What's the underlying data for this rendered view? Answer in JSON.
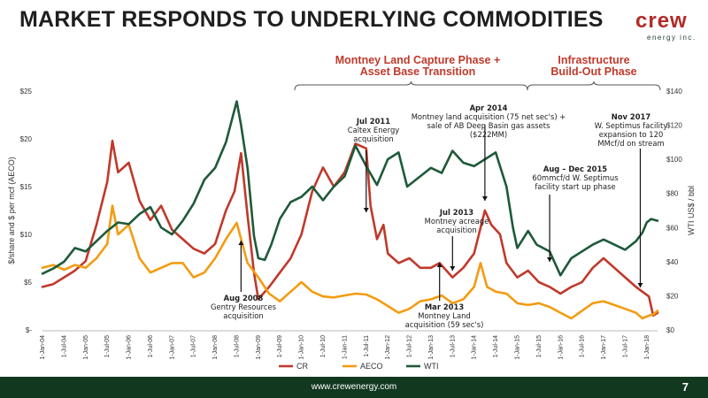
{
  "slide": {
    "title": "MARKET RESPONDS TO UNDERLYING COMMODITIES",
    "logo_word": "crew",
    "logo_sub": "energy inc.",
    "footer_url": "www.crewenergy.com",
    "page_number": "7"
  },
  "phases": [
    {
      "line1": "Montney Land Capture Phase +",
      "line2": "Asset Base Transition"
    },
    {
      "line1": "Infrastructure",
      "line2": "Build-Out Phase"
    }
  ],
  "annotations": [
    {
      "title": "Aug 2008",
      "text1": "Gentry Resources",
      "text2": "acquisition",
      "text3": ""
    },
    {
      "title": "Jul 2011",
      "text1": "Caltex Energy",
      "text2": "acquisition",
      "text3": ""
    },
    {
      "title": "Apr 2014",
      "text1": "Montney land acquisition (75 net sec's) +",
      "text2": "sale of AB Deep Basin gas assets ($222MM)",
      "text3": ""
    },
    {
      "title": "Jul 2013",
      "text1": "Montney acreage",
      "text2": "acquisition",
      "text3": ""
    },
    {
      "title": "Mar 2013",
      "text1": "Montney Land",
      "text2": "acquisition (59 sec's)",
      "text3": ""
    },
    {
      "title": "Aug – Dec 2015",
      "text1": "60mmcf/d W. Septimus",
      "text2": "facility start up phase",
      "text3": ""
    },
    {
      "title": "Nov 2017",
      "text1": "W. Septimus facility",
      "text2": "expansion to 120",
      "text3": "MMcf/d on stream"
    }
  ],
  "colors": {
    "CR": "#c0392b",
    "AECO": "#f39c12",
    "WTI": "#1e5a3a",
    "accent": "#c0392b",
    "footer": "#123820"
  },
  "chart_data": {
    "type": "line",
    "ylabel": "$/share and $ per mcf (AECO)",
    "ylabel_right": "WTI US$ / bbl",
    "ylim": [
      0,
      25
    ],
    "ylim_right": [
      0,
      140
    ],
    "y_ticks": [
      "$-",
      "$5",
      "$10",
      "$15",
      "$20",
      "$25"
    ],
    "y_ticks_right": [
      "$0",
      "$20",
      "$40",
      "$60",
      "$80",
      "$100",
      "$120",
      "$140"
    ],
    "x_ticks": [
      "1-Jan-04",
      "1-Jul-04",
      "1-Jan-05",
      "1-Jul-05",
      "1-Jan-06",
      "1-Jul-06",
      "1-Jan-07",
      "1-Jul-07",
      "1-Jan-08",
      "1-Jul-08",
      "1-Jan-09",
      "1-Jul-09",
      "1-Jan-10",
      "1-Jul-10",
      "1-Jan-11",
      "1-Jul-11",
      "1-Jan-12",
      "1-Jul-12",
      "1-Jan-13",
      "1-Jul-13",
      "1-Jan-14",
      "1-Jul-14",
      "1-Jan-15",
      "1-Jul-15",
      "1-Jan-16",
      "1-Jul-16",
      "1-Jan-17",
      "1-Jul-17",
      "1-Jan-18"
    ],
    "x_range": [
      2004.0,
      2018.25
    ],
    "legend": "bottom",
    "series": [
      {
        "name": "CR",
        "axis": "left",
        "points": [
          [
            2004.0,
            4.5
          ],
          [
            2004.25,
            4.8
          ],
          [
            2004.5,
            5.5
          ],
          [
            2004.75,
            6.2
          ],
          [
            2005.0,
            7.2
          ],
          [
            2005.25,
            11.0
          ],
          [
            2005.5,
            15.5
          ],
          [
            2005.62,
            19.8
          ],
          [
            2005.75,
            16.5
          ],
          [
            2006.0,
            17.5
          ],
          [
            2006.25,
            13.5
          ],
          [
            2006.5,
            11.5
          ],
          [
            2006.75,
            13.0
          ],
          [
            2007.0,
            10.5
          ],
          [
            2007.25,
            9.5
          ],
          [
            2007.5,
            8.5
          ],
          [
            2007.75,
            8.0
          ],
          [
            2008.0,
            9.0
          ],
          [
            2008.25,
            12.5
          ],
          [
            2008.45,
            14.5
          ],
          [
            2008.6,
            18.5
          ],
          [
            2008.75,
            12.0
          ],
          [
            2008.9,
            6.0
          ],
          [
            2009.0,
            3.2
          ],
          [
            2009.25,
            4.5
          ],
          [
            2009.5,
            6.0
          ],
          [
            2009.75,
            7.5
          ],
          [
            2010.0,
            10.0
          ],
          [
            2010.25,
            14.5
          ],
          [
            2010.5,
            17.0
          ],
          [
            2010.75,
            15.0
          ],
          [
            2011.0,
            16.5
          ],
          [
            2011.25,
            19.5
          ],
          [
            2011.5,
            19.0
          ],
          [
            2011.6,
            13.0
          ],
          [
            2011.75,
            9.5
          ],
          [
            2011.9,
            11.0
          ],
          [
            2012.0,
            8.0
          ],
          [
            2012.25,
            7.0
          ],
          [
            2012.5,
            7.5
          ],
          [
            2012.75,
            6.5
          ],
          [
            2013.0,
            6.5
          ],
          [
            2013.2,
            7.0
          ],
          [
            2013.5,
            5.5
          ],
          [
            2013.75,
            6.5
          ],
          [
            2014.0,
            8.0
          ],
          [
            2014.25,
            12.5
          ],
          [
            2014.4,
            11.0
          ],
          [
            2014.6,
            10.0
          ],
          [
            2014.75,
            7.0
          ],
          [
            2015.0,
            5.5
          ],
          [
            2015.25,
            6.2
          ],
          [
            2015.5,
            5.0
          ],
          [
            2015.75,
            4.5
          ],
          [
            2016.0,
            3.8
          ],
          [
            2016.25,
            4.5
          ],
          [
            2016.5,
            5.0
          ],
          [
            2016.75,
            6.5
          ],
          [
            2017.0,
            7.5
          ],
          [
            2017.25,
            6.5
          ],
          [
            2017.5,
            5.5
          ],
          [
            2017.75,
            4.5
          ],
          [
            2017.9,
            4.0
          ],
          [
            2018.05,
            3.5
          ],
          [
            2018.15,
            1.5
          ],
          [
            2018.25,
            1.8
          ]
        ]
      },
      {
        "name": "AECO",
        "axis": "left",
        "points": [
          [
            2004.0,
            6.5
          ],
          [
            2004.25,
            6.8
          ],
          [
            2004.5,
            6.3
          ],
          [
            2004.75,
            6.8
          ],
          [
            2005.0,
            6.5
          ],
          [
            2005.25,
            7.5
          ],
          [
            2005.5,
            9.0
          ],
          [
            2005.62,
            13.0
          ],
          [
            2005.75,
            10.0
          ],
          [
            2006.0,
            11.0
          ],
          [
            2006.25,
            7.5
          ],
          [
            2006.5,
            6.0
          ],
          [
            2006.75,
            6.5
          ],
          [
            2007.0,
            7.0
          ],
          [
            2007.25,
            7.0
          ],
          [
            2007.5,
            5.5
          ],
          [
            2007.75,
            6.0
          ],
          [
            2008.0,
            7.5
          ],
          [
            2008.25,
            9.5
          ],
          [
            2008.5,
            11.2
          ],
          [
            2008.75,
            7.0
          ],
          [
            2009.0,
            5.5
          ],
          [
            2009.25,
            3.8
          ],
          [
            2009.5,
            3.0
          ],
          [
            2009.75,
            4.0
          ],
          [
            2010.0,
            5.0
          ],
          [
            2010.25,
            4.0
          ],
          [
            2010.5,
            3.5
          ],
          [
            2010.75,
            3.4
          ],
          [
            2011.0,
            3.6
          ],
          [
            2011.25,
            3.8
          ],
          [
            2011.5,
            3.7
          ],
          [
            2011.75,
            3.2
          ],
          [
            2012.0,
            2.5
          ],
          [
            2012.25,
            1.8
          ],
          [
            2012.5,
            2.2
          ],
          [
            2012.75,
            3.0
          ],
          [
            2013.0,
            3.2
          ],
          [
            2013.25,
            3.6
          ],
          [
            2013.5,
            2.8
          ],
          [
            2013.75,
            3.2
          ],
          [
            2014.0,
            4.5
          ],
          [
            2014.15,
            7.0
          ],
          [
            2014.3,
            4.5
          ],
          [
            2014.5,
            4.0
          ],
          [
            2014.75,
            3.8
          ],
          [
            2015.0,
            2.8
          ],
          [
            2015.25,
            2.6
          ],
          [
            2015.5,
            2.8
          ],
          [
            2015.75,
            2.4
          ],
          [
            2016.0,
            1.8
          ],
          [
            2016.25,
            1.2
          ],
          [
            2016.5,
            2.0
          ],
          [
            2016.75,
            2.8
          ],
          [
            2017.0,
            3.0
          ],
          [
            2017.25,
            2.6
          ],
          [
            2017.5,
            2.2
          ],
          [
            2017.75,
            1.8
          ],
          [
            2017.9,
            1.2
          ],
          [
            2018.05,
            1.5
          ],
          [
            2018.15,
            1.6
          ],
          [
            2018.25,
            2.0
          ]
        ]
      },
      {
        "name": "WTI",
        "axis": "right",
        "points": [
          [
            2004.0,
            33
          ],
          [
            2004.25,
            36
          ],
          [
            2004.5,
            40
          ],
          [
            2004.75,
            48
          ],
          [
            2005.0,
            46
          ],
          [
            2005.25,
            52
          ],
          [
            2005.5,
            58
          ],
          [
            2005.75,
            63
          ],
          [
            2006.0,
            62
          ],
          [
            2006.25,
            68
          ],
          [
            2006.5,
            72
          ],
          [
            2006.75,
            60
          ],
          [
            2007.0,
            56
          ],
          [
            2007.25,
            64
          ],
          [
            2007.5,
            74
          ],
          [
            2007.75,
            88
          ],
          [
            2008.0,
            95
          ],
          [
            2008.25,
            110
          ],
          [
            2008.5,
            134
          ],
          [
            2008.6,
            120
          ],
          [
            2008.75,
            95
          ],
          [
            2008.9,
            55
          ],
          [
            2009.0,
            42
          ],
          [
            2009.15,
            41
          ],
          [
            2009.3,
            50
          ],
          [
            2009.5,
            65
          ],
          [
            2009.75,
            75
          ],
          [
            2010.0,
            78
          ],
          [
            2010.25,
            84
          ],
          [
            2010.5,
            76
          ],
          [
            2010.75,
            84
          ],
          [
            2011.0,
            90
          ],
          [
            2011.25,
            108
          ],
          [
            2011.5,
            96
          ],
          [
            2011.75,
            85
          ],
          [
            2012.0,
            100
          ],
          [
            2012.25,
            104
          ],
          [
            2012.45,
            84
          ],
          [
            2012.75,
            90
          ],
          [
            2013.0,
            95
          ],
          [
            2013.25,
            92
          ],
          [
            2013.5,
            105
          ],
          [
            2013.75,
            98
          ],
          [
            2014.0,
            96
          ],
          [
            2014.5,
            104
          ],
          [
            2014.75,
            84
          ],
          [
            2014.9,
            60
          ],
          [
            2015.0,
            48
          ],
          [
            2015.25,
            58
          ],
          [
            2015.45,
            50
          ],
          [
            2015.75,
            46
          ],
          [
            2016.0,
            32
          ],
          [
            2016.25,
            42
          ],
          [
            2016.5,
            46
          ],
          [
            2016.75,
            50
          ],
          [
            2017.0,
            53
          ],
          [
            2017.25,
            50
          ],
          [
            2017.5,
            47
          ],
          [
            2017.75,
            52
          ],
          [
            2017.9,
            57
          ],
          [
            2018.0,
            63
          ],
          [
            2018.1,
            65
          ],
          [
            2018.25,
            64
          ]
        ]
      }
    ]
  }
}
